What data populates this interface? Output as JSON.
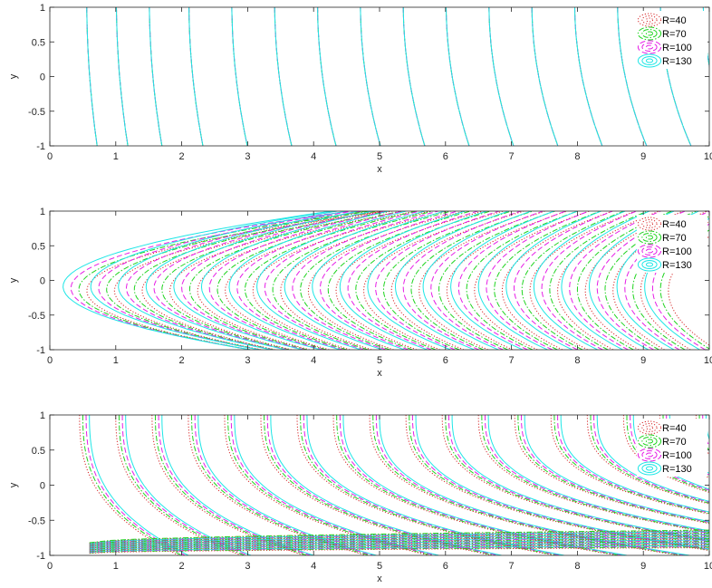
{
  "chart_data": [
    {
      "type": "contour",
      "xlabel": "x",
      "ylabel": "y",
      "xlim": [
        0,
        10
      ],
      "ylim": [
        -1,
        1
      ],
      "xticks": [
        "0",
        "1",
        "2",
        "3",
        "4",
        "5",
        "6",
        "7",
        "8",
        "9",
        "10"
      ],
      "yticks": [
        "1",
        "0.5",
        "0",
        "-0.5",
        "-1"
      ],
      "legend_position": "top-right",
      "series": [
        {
          "name": "R=40",
          "color": "#d62728",
          "style": "dotted"
        },
        {
          "name": "R=70",
          "color": "#1fd41f",
          "style": "dashdot"
        },
        {
          "name": "R=100",
          "color": "#e61ee6",
          "style": "dashed"
        },
        {
          "name": "R=130",
          "color": "#1ee6e6",
          "style": "solid"
        }
      ]
    },
    {
      "type": "contour",
      "xlabel": "x",
      "ylabel": "y",
      "xlim": [
        0,
        10
      ],
      "ylim": [
        -1,
        1
      ],
      "xticks": [
        "0",
        "1",
        "2",
        "3",
        "4",
        "5",
        "6",
        "7",
        "8",
        "9",
        "10"
      ],
      "yticks": [
        "1",
        "0.5",
        "0",
        "-0.5",
        "-1"
      ],
      "legend_position": "top-right",
      "series": [
        {
          "name": "R=40",
          "color": "#d62728",
          "style": "dotted"
        },
        {
          "name": "R=70",
          "color": "#1fd41f",
          "style": "dashdot"
        },
        {
          "name": "R=100",
          "color": "#e61ee6",
          "style": "dashed"
        },
        {
          "name": "R=130",
          "color": "#1ee6e6",
          "style": "solid"
        }
      ]
    },
    {
      "type": "contour",
      "xlabel": "x",
      "ylabel": "y",
      "xlim": [
        0,
        10
      ],
      "ylim": [
        -1,
        1
      ],
      "xticks": [
        "0",
        "1",
        "2",
        "3",
        "4",
        "5",
        "6",
        "7",
        "8",
        "9",
        "10"
      ],
      "yticks": [
        "1",
        "0.5",
        "0",
        "-0.5",
        "-1"
      ],
      "legend_position": "top-right",
      "series": [
        {
          "name": "R=40",
          "color": "#d62728",
          "style": "dotted"
        },
        {
          "name": "R=70",
          "color": "#1fd41f",
          "style": "dashdot"
        },
        {
          "name": "R=100",
          "color": "#e61ee6",
          "style": "dashed"
        },
        {
          "name": "R=130",
          "color": "#1ee6e6",
          "style": "solid"
        }
      ]
    }
  ]
}
